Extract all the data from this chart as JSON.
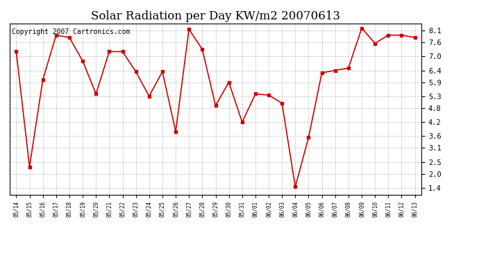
{
  "title": "Solar Radiation per Day KW/m2 20070613",
  "copyright_text": "Copyright 2007 Cartronics.com",
  "dates": [
    "05/14",
    "05/15",
    "05/16",
    "05/17",
    "05/18",
    "05/19",
    "05/20",
    "05/21",
    "05/22",
    "05/23",
    "05/24",
    "05/25",
    "05/26",
    "05/27",
    "05/28",
    "05/29",
    "05/30",
    "05/31",
    "06/01",
    "06/02",
    "06/03",
    "06/04",
    "06/05",
    "06/06",
    "06/07",
    "06/08",
    "06/09",
    "06/10",
    "06/11",
    "06/12",
    "06/13"
  ],
  "values": [
    7.2,
    2.3,
    6.0,
    7.9,
    7.8,
    6.8,
    5.4,
    7.2,
    7.2,
    6.35,
    5.3,
    6.35,
    3.8,
    8.15,
    7.3,
    4.9,
    5.9,
    4.2,
    5.4,
    5.35,
    5.0,
    1.45,
    3.55,
    6.3,
    6.4,
    6.5,
    8.2,
    7.55,
    7.9,
    7.9,
    7.8
  ],
  "line_color": "#cc0000",
  "marker_color": "#cc0000",
  "marker_style": "s",
  "marker_size": 2.5,
  "line_width": 1.2,
  "ylim": [
    1.1,
    8.4
  ],
  "yticks": [
    1.4,
    2.0,
    2.5,
    3.1,
    3.6,
    4.2,
    4.8,
    5.3,
    5.9,
    6.4,
    7.0,
    7.6,
    8.1
  ],
  "background_color": "#ffffff",
  "plot_bg_color": "#ffffff",
  "grid_color": "#bbbbbb",
  "title_fontsize": 12,
  "copyright_fontsize": 7,
  "xtick_fontsize": 5.5,
  "ytick_fontsize": 7.5
}
